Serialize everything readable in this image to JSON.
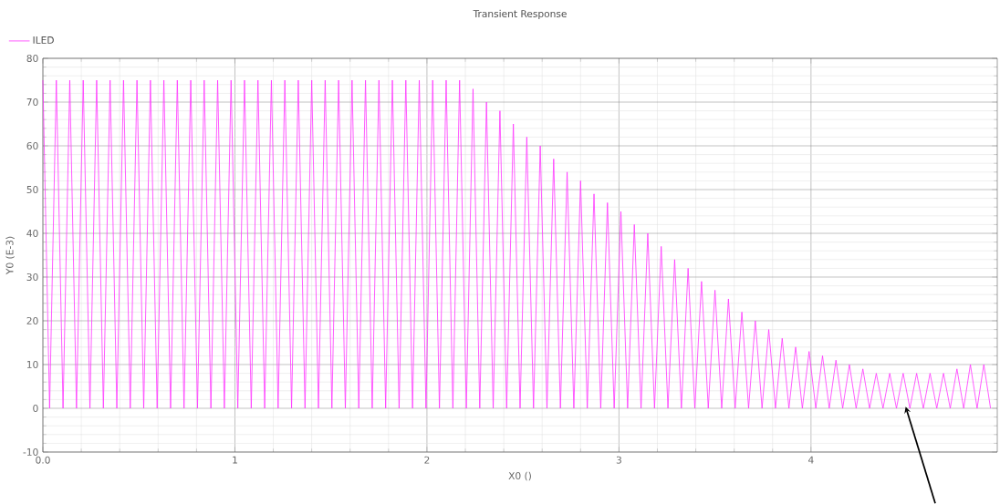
{
  "chart_data": {
    "type": "line",
    "title": "Transient Response",
    "xlabel": "X0 ()",
    "ylabel": "Y0 (E-3)",
    "xlim": [
      0,
      4.97
    ],
    "ylim": [
      -10,
      80
    ],
    "xticks": [
      {
        "value": 0,
        "label": "0.0"
      },
      1,
      2,
      3,
      4
    ],
    "yticks": [
      -10,
      0,
      10,
      20,
      30,
      40,
      50,
      60,
      70,
      80
    ],
    "grid": true,
    "legend": "top left",
    "marker": "none",
    "line_style": "solid",
    "series": [
      {
        "name": "ILED",
        "color": "#ff33ff",
        "x": [
          0,
          0.035,
          0.07,
          0.105,
          0.14,
          0.175,
          0.21,
          0.245,
          0.28,
          0.315,
          0.35,
          0.385,
          0.42,
          0.455,
          0.49,
          0.525,
          0.56,
          0.595,
          0.63,
          0.665,
          0.7,
          0.735,
          0.77,
          0.805,
          0.84,
          0.875,
          0.91,
          0.945,
          0.98,
          1.015,
          1.05,
          1.085,
          1.12,
          1.155,
          1.19,
          1.225,
          1.26,
          1.295,
          1.33,
          1.365,
          1.4,
          1.435,
          1.47,
          1.505,
          1.54,
          1.575,
          1.61,
          1.645,
          1.68,
          1.715,
          1.75,
          1.785,
          1.82,
          1.855,
          1.89,
          1.925,
          1.96,
          1.995,
          2.03,
          2.065,
          2.1,
          2.135,
          2.17,
          2.205,
          2.24,
          2.275,
          2.31,
          2.345,
          2.38,
          2.415,
          2.45,
          2.485,
          2.52,
          2.555,
          2.59,
          2.625,
          2.66,
          2.695,
          2.73,
          2.765,
          2.8,
          2.835,
          2.87,
          2.905,
          2.94,
          2.975,
          3.01,
          3.045,
          3.08,
          3.115,
          3.15,
          3.185,
          3.22,
          3.255,
          3.29,
          3.325,
          3.36,
          3.395,
          3.43,
          3.465,
          3.5,
          3.535,
          3.57,
          3.605,
          3.64,
          3.675,
          3.71,
          3.745,
          3.78,
          3.815,
          3.85,
          3.885,
          3.92,
          3.955,
          3.99,
          4.025,
          4.06,
          4.095,
          4.13,
          4.165,
          4.2,
          4.235,
          4.27,
          4.305,
          4.34,
          4.375,
          4.41,
          4.445,
          4.48,
          4.515,
          4.55,
          4.585,
          4.62,
          4.655,
          4.69,
          4.725,
          4.76,
          4.795,
          4.83,
          4.865,
          4.9,
          4.935
        ],
        "values": [
          75,
          0,
          75,
          0,
          75,
          0,
          75,
          0,
          75,
          0,
          75,
          0,
          75,
          0,
          75,
          0,
          75,
          0,
          75,
          0,
          75,
          0,
          75,
          0,
          75,
          0,
          75,
          0,
          75,
          0,
          75,
          0,
          75,
          0,
          75,
          0,
          75,
          0,
          75,
          0,
          75,
          0,
          75,
          0,
          75,
          0,
          75,
          0,
          75,
          0,
          75,
          0,
          75,
          0,
          75,
          0,
          75,
          0,
          75,
          0,
          75,
          0,
          75,
          0,
          73,
          0,
          70,
          0,
          68,
          0,
          65,
          0,
          62,
          0,
          60,
          0,
          57,
          0,
          54,
          0,
          52,
          0,
          49,
          0,
          47,
          0,
          45,
          0,
          42,
          0,
          40,
          0,
          37,
          0,
          34,
          0,
          32,
          0,
          29,
          0,
          27,
          0,
          25,
          0,
          22,
          0,
          20,
          0,
          18,
          0,
          16,
          0,
          14,
          0,
          13,
          0,
          12,
          0,
          11,
          0,
          10,
          0,
          9,
          0,
          8,
          0,
          8,
          0,
          8,
          0,
          8,
          0,
          8,
          0,
          8,
          0,
          9,
          0,
          10,
          0,
          10,
          0
        ]
      }
    ]
  }
}
